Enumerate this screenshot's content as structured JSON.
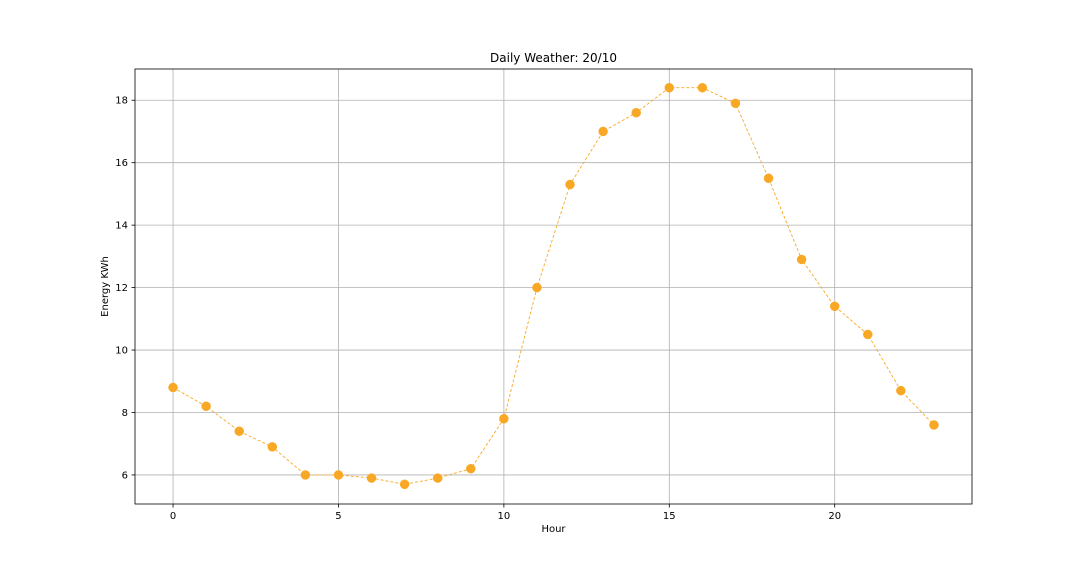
{
  "chart_data": {
    "type": "line",
    "title": "Daily Weather: 20/10",
    "xlabel": "Hour",
    "ylabel": "Energy KWh",
    "xlim": [
      -1.15,
      24.15
    ],
    "ylim": [
      5.07,
      19.0
    ],
    "xticks": [
      0,
      5,
      10,
      15,
      20
    ],
    "yticks": [
      6,
      8,
      10,
      12,
      14,
      16,
      18
    ],
    "grid": true,
    "line_style": "dashed",
    "marker": "circle",
    "color": "#f9a825",
    "series": [
      {
        "x": [
          0,
          1,
          2,
          3,
          4,
          5,
          6,
          7,
          8,
          9,
          10,
          11,
          12,
          13,
          14,
          15,
          16,
          17,
          18,
          19,
          20,
          21,
          22,
          23
        ],
        "values": [
          8.8,
          8.2,
          7.4,
          6.9,
          6.0,
          6.0,
          5.9,
          5.7,
          5.9,
          6.2,
          7.8,
          12.0,
          15.3,
          17.0,
          17.6,
          18.4,
          18.4,
          17.9,
          15.5,
          12.9,
          11.4,
          10.5,
          8.7,
          7.6
        ]
      }
    ]
  }
}
